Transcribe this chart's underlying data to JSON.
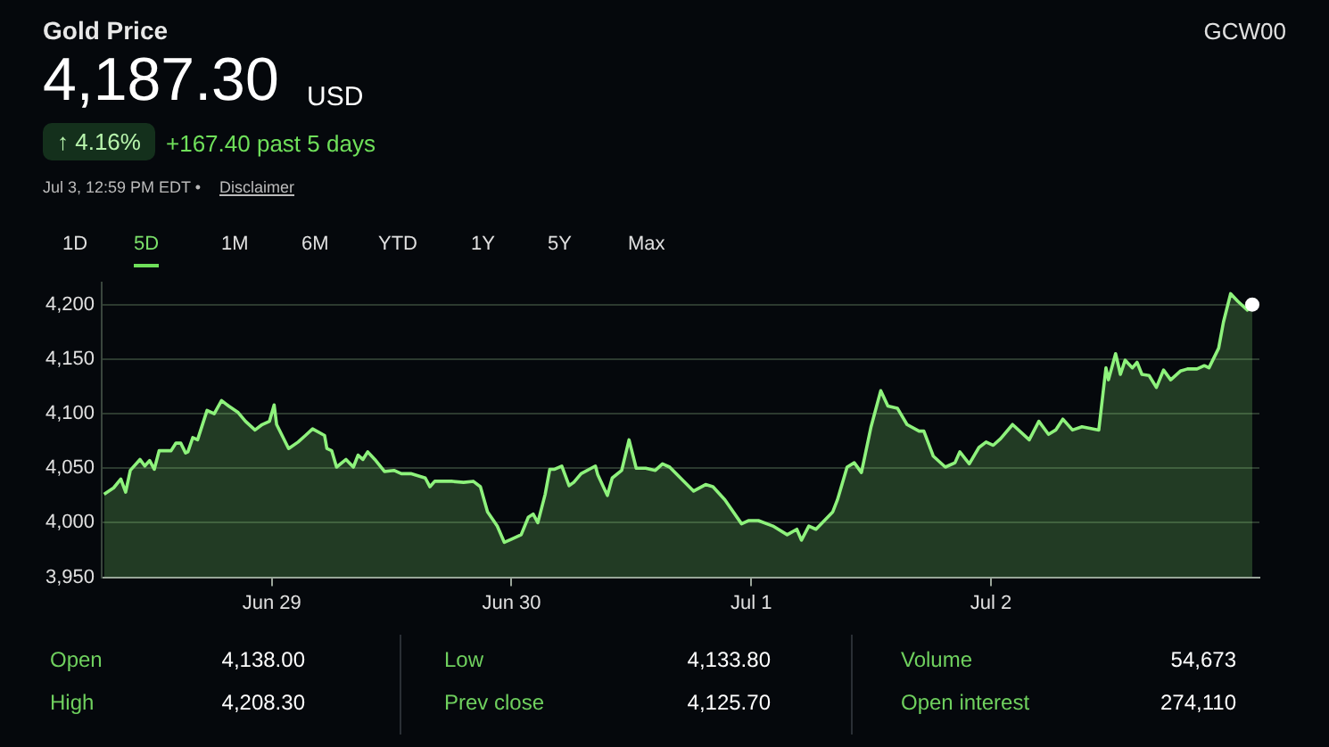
{
  "chart_data": {
    "type": "area",
    "title": "Gold Price",
    "annotations": [
      "4,187.30",
      "USD",
      "↑ 4.16%",
      "+167.40 past 5 days",
      "Jul 3, 12:59 PM EDT •",
      "Disclaimer",
      "1D",
      "5D",
      "1M",
      "6M",
      "YTD",
      "1Y",
      "5Y",
      "Max",
      "Open",
      "4,138.00",
      "High",
      "4,208.30",
      "Low",
      "4,133.80",
      "Prev close",
      "4,125.70",
      "Volume",
      "54,673",
      "Open interest",
      "274,110",
      "GCW00"
    ],
    "xlim": [
      "--06-28T06:58",
      "--07-03T02:53"
    ],
    "xticks": [
      {
        "value": "--06-29",
        "label": "Jun 29"
      },
      {
        "value": "--06-30",
        "label": "Jun 30"
      },
      {
        "value": "--07-01",
        "label": "Jul 1"
      },
      {
        "value": "--07-02",
        "label": "Jul 2"
      }
    ],
    "ylim": [
      3950,
      4220
    ],
    "yticks": [
      {
        "value": 3950,
        "label": "3,950"
      },
      {
        "value": 4000,
        "label": "4,000"
      },
      {
        "value": 4050,
        "label": "4,050"
      },
      {
        "value": 4100,
        "label": "4,100"
      },
      {
        "value": 4150,
        "label": "4,150"
      },
      {
        "value": 4200,
        "label": "4,200"
      }
    ],
    "grid": "y",
    "legend": false,
    "marker": "none",
    "series": [
      {
        "color": "#8ef27c",
        "x": [
          "--06-28T07:12",
          "--06-28T08:10",
          "--06-28T08:53",
          "--06-28T09:22",
          "--06-28T09:50",
          "--06-28T10:48",
          "--06-28T11:17",
          "--06-28T11:46",
          "--06-28T12:14",
          "--06-28T12:43",
          "--06-28T13:55",
          "--06-28T14:24",
          "--06-28T14:53",
          "--06-28T15:22",
          "--06-28T15:36",
          "--06-28T16:05",
          "--06-28T16:34",
          "--06-28T17:31",
          "--06-28T18:14",
          "--06-28T18:58",
          "--06-28T19:41",
          "--06-28T20:38",
          "--06-28T21:22",
          "--06-28T22:19",
          "--06-28T23:02",
          "--06-28T23:46",
          "--06-29T00:14",
          "--06-29T00:29",
          "--06-29T01:41",
          "--06-29T02:38",
          "--06-29T03:22",
          "--06-29T04:05",
          "--06-29T05:17",
          "--06-29T05:31",
          "--06-29T06:00",
          "--06-29T06:29",
          "--06-29T07:26",
          "--06-29T08:10",
          "--06-29T08:38",
          "--06-29T09:07",
          "--06-29T09:36",
          "--06-29T10:19",
          "--06-29T11:17",
          "--06-29T12:14",
          "--06-29T12:58",
          "--06-29T13:55",
          "--06-29T15:22",
          "--06-29T15:50",
          "--06-29T16:19",
          "--06-29T18:00",
          "--06-29T19:12",
          "--06-29T20:10",
          "--06-29T20:53",
          "--06-29T21:36",
          "--06-29T22:34",
          "--06-29T23:17",
          "--06-30T00:00",
          "--06-30T00:58",
          "--06-30T01:41",
          "--06-30T02:10",
          "--06-30T02:38",
          "--06-30T03:22",
          "--06-30T03:50",
          "--06-30T04:19",
          "--06-30T05:02",
          "--06-30T05:46",
          "--06-30T06:14",
          "--06-30T06:58",
          "--06-30T08:24",
          "--06-30T08:38",
          "--06-30T09:36",
          "--06-30T10:05",
          "--06-30T11:02",
          "--06-30T11:46",
          "--06-30T12:29",
          "--06-30T13:26",
          "--06-30T14:24",
          "--06-30T15:07",
          "--06-30T15:50",
          "--06-30T17:02",
          "--06-30T18:14",
          "--06-30T19:26",
          "--06-30T20:10",
          "--06-30T21:22",
          "--06-30T23:02",
          "--06-30T23:46",
          "--07-01T00:43",
          "--07-01T02:10",
          "--07-01T03:36",
          "--07-01T04:34",
          "--07-01T05:02",
          "--07-01T05:46",
          "--07-01T06:29",
          "--07-01T08:10",
          "--07-01T08:38",
          "--07-01T09:36",
          "--07-01T10:19",
          "--07-01T11:02",
          "--07-01T12:00",
          "--07-01T12:58",
          "--07-01T13:41",
          "--07-01T14:38",
          "--07-01T15:36",
          "--07-01T16:48",
          "--07-01T17:17",
          "--07-01T18:14",
          "--07-01T19:26",
          "--07-01T20:24",
          "--07-01T20:53",
          "--07-01T21:50",
          "--07-01T22:48",
          "--07-01T23:31",
          "--07-02T00:14",
          "--07-02T00:58",
          "--07-02T02:10",
          "--07-02T03:50",
          "--07-02T04:48",
          "--07-02T05:46",
          "--07-02T06:29",
          "--07-02T07:12",
          "--07-02T08:10",
          "--07-02T09:07",
          "--07-02T10:48",
          "--07-02T11:31",
          "--07-02T11:46",
          "--07-02T12:29",
          "--07-02T12:58",
          "--07-02T13:26",
          "--07-02T14:10",
          "--07-02T14:38",
          "--07-02T15:07",
          "--07-02T15:50",
          "--07-02T16:34",
          "--07-02T17:17",
          "--07-02T18:00",
          "--07-02T18:58",
          "--07-02T19:41",
          "--07-02T20:38",
          "--07-02T21:22",
          "--07-02T21:50",
          "--07-02T22:48",
          "--07-02T23:17",
          "--07-03T00:00",
          "--07-03T00:43",
          "--07-03T01:41",
          "--07-03T02:10"
        ],
        "values": [
          4026,
          4032,
          4040,
          4028,
          4048,
          4058,
          4052,
          4057,
          4049,
          4066,
          4066,
          4073,
          4073,
          4064,
          4065,
          4078,
          4076,
          4103,
          4100,
          4112,
          4107,
          4101,
          4093,
          4085,
          4090,
          4093,
          4108,
          4090,
          4068,
          4074,
          4080,
          4086,
          4080,
          4068,
          4066,
          4051,
          4058,
          4051,
          4062,
          4058,
          4065,
          4058,
          4047,
          4048,
          4045,
          4045,
          4041,
          4033,
          4038,
          4038,
          4037,
          4038,
          4033,
          4010,
          3997,
          3982,
          3985,
          3989,
          4005,
          4008,
          4000,
          4026,
          4049,
          4049,
          4052,
          4034,
          4037,
          4045,
          4052,
          4044,
          4025,
          4041,
          4048,
          4076,
          4050,
          4050,
          4048,
          4054,
          4051,
          4040,
          4029,
          4035,
          4033,
          4021,
          3999,
          4002,
          4002,
          3997,
          3989,
          3994,
          3984,
          3997,
          3994,
          4010,
          4021,
          4051,
          4055,
          4046,
          4088,
          4121,
          4107,
          4105,
          4090,
          4084,
          4084,
          4061,
          4051,
          4055,
          4065,
          4054,
          4069,
          4074,
          4071,
          4077,
          4090,
          4076,
          4093,
          4081,
          4085,
          4095,
          4085,
          4088,
          4085,
          4142,
          4131,
          4155,
          4136,
          4149,
          4142,
          4147,
          4136,
          4135,
          4124,
          4140,
          4131,
          4139,
          4141,
          4141,
          4144,
          4142,
          4160,
          4184,
          4210,
          4203,
          4195,
          4200
        ]
      }
    ]
  }
}
